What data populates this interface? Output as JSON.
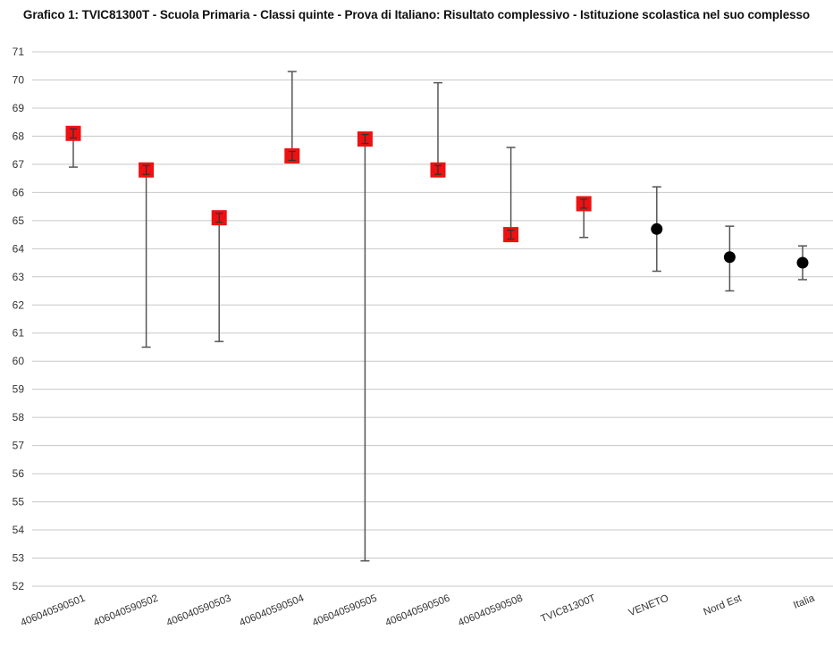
{
  "chart_data": {
    "type": "scatter",
    "title": "Grafico 1: TVIC81300T - Scuola Primaria - Classi quinte - Prova di Italiano: Risultato complessivo - Istituzione scolastica nel suo complesso",
    "xlabel": "",
    "ylabel": "",
    "ylim": [
      52,
      71
    ],
    "yticks": [
      52,
      53,
      54,
      55,
      56,
      57,
      58,
      59,
      60,
      61,
      62,
      63,
      64,
      65,
      66,
      67,
      68,
      69,
      70,
      71
    ],
    "grid": true,
    "categories": [
      "406040590501",
      "406040590502",
      "406040590503",
      "406040590504",
      "406040590505",
      "406040590506",
      "406040590508",
      "TVIC81300T",
      "VENETO",
      "Nord Est",
      "Italia"
    ],
    "points": [
      {
        "category": "406040590501",
        "value": 68.1,
        "low": 66.9,
        "high": 68.2,
        "marker": "square",
        "color": "#ee1111"
      },
      {
        "category": "406040590502",
        "value": 66.8,
        "low": 60.5,
        "high": 66.9,
        "marker": "square",
        "color": "#ee1111"
      },
      {
        "category": "406040590503",
        "value": 65.1,
        "low": 60.7,
        "high": 65.1,
        "marker": "square",
        "color": "#ee1111"
      },
      {
        "category": "406040590504",
        "value": 67.3,
        "low": 67.3,
        "high": 70.3,
        "marker": "square",
        "color": "#ee1111"
      },
      {
        "category": "406040590505",
        "value": 67.9,
        "low": 52.9,
        "high": 67.9,
        "marker": "square",
        "color": "#ee1111"
      },
      {
        "category": "406040590506",
        "value": 66.8,
        "low": 66.8,
        "high": 69.9,
        "marker": "square",
        "color": "#ee1111"
      },
      {
        "category": "406040590508",
        "value": 64.5,
        "low": 64.5,
        "high": 67.6,
        "marker": "square",
        "color": "#ee1111"
      },
      {
        "category": "TVIC81300T",
        "value": 65.6,
        "low": 64.4,
        "high": 65.7,
        "marker": "square",
        "color": "#ee1111"
      },
      {
        "category": "VENETO",
        "value": 64.7,
        "low": 63.2,
        "high": 66.2,
        "marker": "circle",
        "color": "#000000"
      },
      {
        "category": "Nord Est",
        "value": 63.7,
        "low": 62.5,
        "high": 64.8,
        "marker": "circle",
        "color": "#000000"
      },
      {
        "category": "Italia",
        "value": 63.5,
        "low": 62.9,
        "high": 64.1,
        "marker": "circle",
        "color": "#000000"
      }
    ]
  }
}
